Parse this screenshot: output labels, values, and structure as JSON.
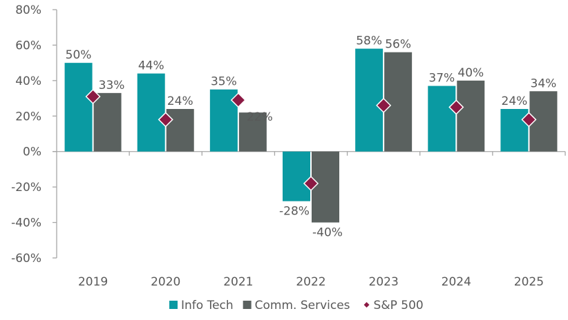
{
  "chart_data": {
    "type": "bar",
    "title": "",
    "xlabel": "",
    "ylabel": "",
    "categories": [
      "2019",
      "2020",
      "2021",
      "2022",
      "2023",
      "2024",
      "2025"
    ],
    "series": [
      {
        "name": "Info Tech",
        "kind": "bar",
        "color": "#0a9aa2",
        "values": [
          50,
          44,
          35,
          -28,
          58,
          37,
          24
        ],
        "labels": [
          "50%",
          "44%",
          "35%",
          "-28%",
          "58%",
          "37%",
          "24%"
        ]
      },
      {
        "name": "Comm. Services",
        "kind": "bar",
        "color": "#5a615f",
        "values": [
          33,
          24,
          22,
          -40,
          56,
          40,
          34
        ],
        "labels": [
          "33%",
          "24%",
          "22%",
          "-40%",
          "56%",
          "40%",
          "34%"
        ]
      },
      {
        "name": "S&P 500",
        "kind": "marker-diamond",
        "color": "#8b1a44",
        "values": [
          31,
          18,
          29,
          -18,
          26,
          25,
          18
        ]
      }
    ],
    "ylim": [
      -60,
      80
    ],
    "yticks": [
      -60,
      -40,
      -20,
      0,
      20,
      40,
      60,
      80
    ],
    "ytick_labels": [
      "-60%",
      "-40%",
      "-20%",
      "0%",
      "20%",
      "40%",
      "60%",
      "80%"
    ],
    "grid": false,
    "legend_position": "bottom-center",
    "axis_color": "#a6a6a6",
    "text_color": "#595959"
  }
}
